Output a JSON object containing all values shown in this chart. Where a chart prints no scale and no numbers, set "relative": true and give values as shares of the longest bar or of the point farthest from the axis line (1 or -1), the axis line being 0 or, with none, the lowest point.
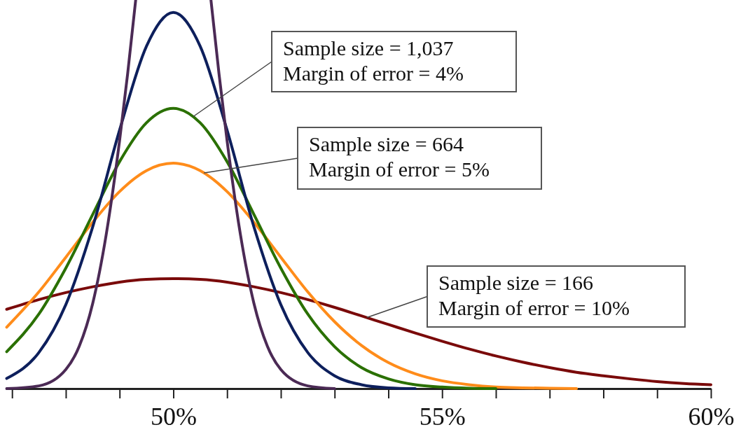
{
  "chart_data": {
    "type": "line",
    "relative": true,
    "x": [
      46.9,
      47.5,
      48,
      48.5,
      49,
      49.5,
      50,
      50.5,
      51,
      51.5,
      52,
      52.5,
      53,
      53.5,
      54,
      54.5,
      55,
      55.5,
      56,
      56.5,
      57,
      57.5,
      58,
      58.5,
      59,
      59.5,
      60
    ],
    "xlim": [
      46.88,
      60
    ],
    "xticks": [
      {
        "value": 47,
        "label": null
      },
      {
        "value": 48,
        "label": null
      },
      {
        "value": 49,
        "label": null
      },
      {
        "value": 50,
        "label": "50%"
      },
      {
        "value": 51,
        "label": null
      },
      {
        "value": 52,
        "label": null
      },
      {
        "value": 53,
        "label": null
      },
      {
        "value": 54,
        "label": null
      },
      {
        "value": 55,
        "label": "55%"
      },
      {
        "value": 56,
        "label": null
      },
      {
        "value": 57,
        "label": null
      },
      {
        "value": 58,
        "label": null
      },
      {
        "value": 59,
        "label": null
      },
      {
        "value": 60,
        "label": "60%"
      }
    ],
    "series": [
      {
        "color": "#7a0a0a",
        "values": [
          0.204,
          0.229,
          0.247,
          0.262,
          0.274,
          0.281,
          0.283,
          0.281,
          0.274,
          0.262,
          0.247,
          0.229,
          0.209,
          0.187,
          0.165,
          0.143,
          0.122,
          0.102,
          0.084,
          0.068,
          0.054,
          0.042,
          0.033,
          0.025,
          0.018,
          0.013,
          0.01
        ]
      },
      {
        "color": "#ff8c1a",
        "x": [
          46.9,
          47.5,
          48,
          48.5,
          49,
          49.5,
          50,
          50.5,
          51,
          51.5,
          52,
          52.5,
          53,
          53.5,
          54,
          54.5,
          55,
          55.5,
          56,
          56.5,
          57,
          57.5
        ],
        "values": [
          0.158,
          0.249,
          0.338,
          0.428,
          0.507,
          0.561,
          0.58,
          0.561,
          0.507,
          0.428,
          0.338,
          0.249,
          0.172,
          0.111,
          0.067,
          0.038,
          0.02,
          0.01,
          0.004,
          0.002,
          0.001,
          0
        ]
      },
      {
        "color": "#2a7000",
        "x": [
          46.9,
          47.5,
          48,
          48.5,
          49,
          49.5,
          50,
          50.5,
          51,
          51.5,
          52,
          52.5,
          53,
          53.5,
          54,
          54.5,
          55,
          55.5,
          56
        ],
        "values": [
          0.095,
          0.192,
          0.31,
          0.448,
          0.584,
          0.684,
          0.721,
          0.684,
          0.584,
          0.448,
          0.31,
          0.192,
          0.108,
          0.054,
          0.025,
          0.01,
          0.004,
          0.001,
          0
        ]
      },
      {
        "color": "#0d1f5c",
        "x": [
          46.9,
          47.5,
          48,
          48.5,
          49,
          49.5,
          50,
          50.5,
          51,
          51.5,
          52,
          52.5,
          53,
          53.5,
          54,
          54.5
        ],
        "values": [
          0.026,
          0.093,
          0.216,
          0.416,
          0.665,
          0.881,
          0.968,
          0.881,
          0.665,
          0.416,
          0.216,
          0.093,
          0.033,
          0.01,
          0.002,
          0
        ]
      },
      {
        "color": "#4b2a55",
        "x": [
          46.9,
          47.5,
          48,
          48.25,
          48.5,
          48.75,
          49,
          49.15,
          49.3,
          50,
          50.7,
          50.85,
          51,
          51.25,
          51.5,
          51.75,
          52,
          52.5,
          53
        ],
        "values": [
          0,
          0.007,
          0.049,
          0.109,
          0.219,
          0.395,
          0.638,
          0.81,
          1,
          null,
          1,
          0.81,
          0.638,
          0.395,
          0.219,
          0.109,
          0.049,
          0.007,
          0
        ]
      }
    ],
    "annotations": [
      {
        "text": "Sample size = 1,037\nMargin of error = 4%",
        "x": 50.37,
        "y": 0.7
      },
      {
        "text": "Sample size = 664\nMargin of error = 5%",
        "x": 50.57,
        "y": 0.555
      },
      {
        "text": "Sample size = 166\nMargin of error = 10%",
        "x": 53.6,
        "y": 0.183
      }
    ]
  }
}
